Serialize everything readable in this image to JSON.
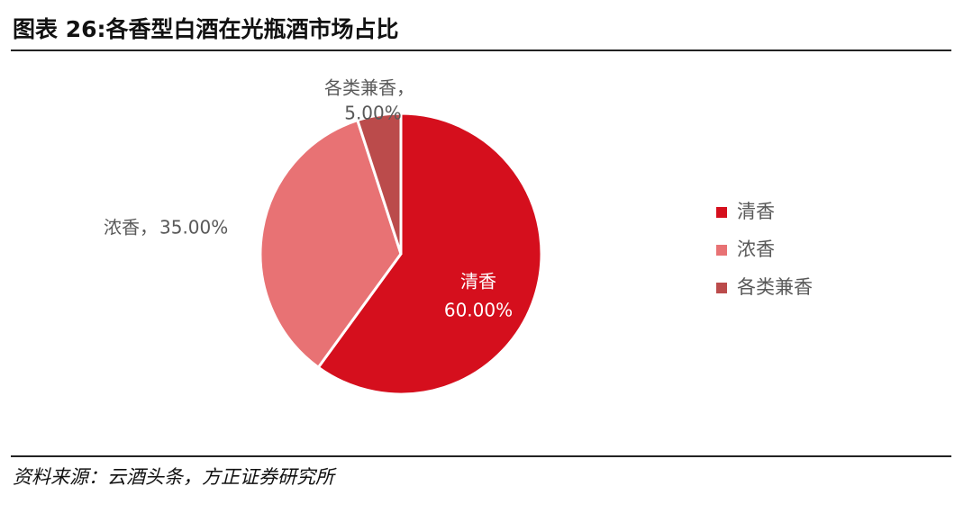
{
  "chart_data": {
    "type": "pie",
    "title": "图表 26:各香型白酒在光瓶酒市场占比",
    "categories": [
      "清香",
      "浓香",
      "各类兼香"
    ],
    "values": [
      60,
      35,
      5
    ],
    "value_labels": [
      "60.00%",
      "35.00%",
      "5.00%"
    ],
    "label_separator": "，",
    "colors": [
      "#d50f1d",
      "#e87274",
      "#bb4b4b"
    ],
    "legend": "right",
    "source": "资料来源：云酒头条，方正证券研究所"
  }
}
